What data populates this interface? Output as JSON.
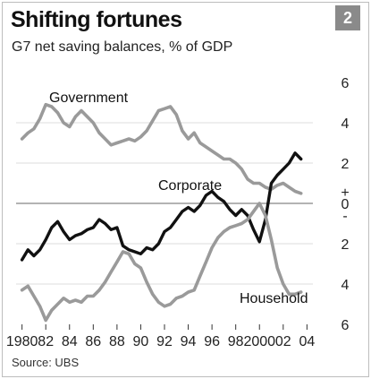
{
  "header": {
    "title": "Shifting fortunes",
    "subtitle": "G7 net saving balances, % of GDP",
    "chart_number": "2"
  },
  "footer": {
    "source": "Source: UBS"
  },
  "chart_data": {
    "type": "line",
    "title": "Shifting fortunes",
    "subtitle": "G7 net saving balances, % of GDP",
    "xlabel": "",
    "ylabel": "",
    "xlim": [
      1979.5,
      2004.5
    ],
    "ylim": [
      -6,
      6
    ],
    "x_ticks": [
      1980,
      1982,
      1984,
      1986,
      1988,
      1990,
      1992,
      1994,
      1996,
      1998,
      2000,
      2002,
      2004
    ],
    "x_tick_labels": [
      "1980",
      "82",
      "84",
      "86",
      "88",
      "90",
      "92",
      "94",
      "96",
      "98",
      "2000",
      "02",
      "04"
    ],
    "y_ticks": [
      6,
      4,
      2,
      0,
      -2,
      -4,
      -6
    ],
    "y_tick_labels": [
      "6",
      "4",
      "2",
      "0",
      "2",
      "4",
      "6"
    ],
    "y_sign_markers": [
      "+",
      "-"
    ],
    "grid": true,
    "zero_line": true,
    "legend": "none",
    "series": [
      {
        "name": "Government",
        "color": "#9a9a9a",
        "points": [
          [
            1980,
            3.2
          ],
          [
            1980.5,
            3.5
          ],
          [
            1981,
            3.7
          ],
          [
            1981.5,
            4.2
          ],
          [
            1982,
            4.9
          ],
          [
            1982.5,
            4.8
          ],
          [
            1983,
            4.5
          ],
          [
            1983.5,
            4.0
          ],
          [
            1984,
            3.8
          ],
          [
            1984.5,
            4.3
          ],
          [
            1985,
            4.6
          ],
          [
            1985.5,
            4.3
          ],
          [
            1986,
            4.0
          ],
          [
            1986.5,
            3.5
          ],
          [
            1987,
            3.2
          ],
          [
            1987.5,
            2.9
          ],
          [
            1988,
            3.0
          ],
          [
            1988.5,
            3.1
          ],
          [
            1989,
            3.2
          ],
          [
            1989.5,
            3.1
          ],
          [
            1990,
            3.3
          ],
          [
            1990.5,
            3.6
          ],
          [
            1991,
            4.1
          ],
          [
            1991.5,
            4.6
          ],
          [
            1992,
            4.7
          ],
          [
            1992.5,
            4.8
          ],
          [
            1993,
            4.4
          ],
          [
            1993.5,
            3.6
          ],
          [
            1994,
            3.2
          ],
          [
            1994.5,
            3.5
          ],
          [
            1995,
            3.0
          ],
          [
            1995.5,
            2.8
          ],
          [
            1996,
            2.6
          ],
          [
            1996.5,
            2.4
          ],
          [
            1997,
            2.2
          ],
          [
            1997.5,
            2.2
          ],
          [
            1998,
            2.0
          ],
          [
            1998.5,
            1.7
          ],
          [
            1999,
            1.2
          ],
          [
            1999.5,
            1.0
          ],
          [
            2000,
            1.0
          ],
          [
            2000.5,
            0.8
          ],
          [
            2001,
            0.7
          ],
          [
            2001.5,
            0.9
          ],
          [
            2002,
            1.0
          ],
          [
            2002.5,
            0.8
          ],
          [
            2003,
            0.6
          ],
          [
            2003.5,
            0.5
          ]
        ]
      },
      {
        "name": "Corporate",
        "color": "#111111",
        "points": [
          [
            1980,
            -2.8
          ],
          [
            1980.5,
            -2.3
          ],
          [
            1981,
            -2.6
          ],
          [
            1981.5,
            -2.3
          ],
          [
            1982,
            -1.8
          ],
          [
            1982.5,
            -1.2
          ],
          [
            1983,
            -0.9
          ],
          [
            1983.5,
            -1.4
          ],
          [
            1984,
            -1.8
          ],
          [
            1984.5,
            -1.6
          ],
          [
            1985,
            -1.5
          ],
          [
            1985.5,
            -1.3
          ],
          [
            1986,
            -1.2
          ],
          [
            1986.5,
            -0.8
          ],
          [
            1987,
            -1.0
          ],
          [
            1987.5,
            -1.3
          ],
          [
            1988,
            -1.2
          ],
          [
            1988.5,
            -2.1
          ],
          [
            1989,
            -2.3
          ],
          [
            1989.5,
            -2.4
          ],
          [
            1990,
            -2.5
          ],
          [
            1990.5,
            -2.2
          ],
          [
            1991,
            -2.3
          ],
          [
            1991.5,
            -2.0
          ],
          [
            1992,
            -1.4
          ],
          [
            1992.5,
            -1.2
          ],
          [
            1993,
            -0.8
          ],
          [
            1993.5,
            -0.4
          ],
          [
            1994,
            -0.2
          ],
          [
            1994.5,
            -0.4
          ],
          [
            1995,
            -0.1
          ],
          [
            1995.5,
            0.4
          ],
          [
            1996,
            0.6
          ],
          [
            1996.5,
            0.3
          ],
          [
            1997,
            0.1
          ],
          [
            1997.5,
            -0.3
          ],
          [
            1998,
            -0.6
          ],
          [
            1998.5,
            -0.3
          ],
          [
            1999,
            -0.6
          ],
          [
            1999.5,
            -1.3
          ],
          [
            2000,
            -1.9
          ],
          [
            2000.5,
            -0.8
          ],
          [
            2001,
            1.0
          ],
          [
            2001.5,
            1.4
          ],
          [
            2002,
            1.7
          ],
          [
            2002.5,
            2.0
          ],
          [
            2003,
            2.5
          ],
          [
            2003.5,
            2.2
          ]
        ]
      },
      {
        "name": "Household",
        "color": "#9a9a9a",
        "points": [
          [
            1980,
            -4.3
          ],
          [
            1980.5,
            -4.1
          ],
          [
            1981,
            -4.6
          ],
          [
            1981.5,
            -5.1
          ],
          [
            1982,
            -5.8
          ],
          [
            1982.5,
            -5.3
          ],
          [
            1983,
            -5.0
          ],
          [
            1983.5,
            -4.7
          ],
          [
            1984,
            -4.9
          ],
          [
            1984.5,
            -4.8
          ],
          [
            1985,
            -4.9
          ],
          [
            1985.5,
            -4.6
          ],
          [
            1986,
            -4.6
          ],
          [
            1986.5,
            -4.3
          ],
          [
            1987,
            -3.9
          ],
          [
            1987.5,
            -3.4
          ],
          [
            1988,
            -2.9
          ],
          [
            1988.5,
            -2.4
          ],
          [
            1989,
            -2.5
          ],
          [
            1989.5,
            -3.0
          ],
          [
            1990,
            -3.2
          ],
          [
            1990.5,
            -3.9
          ],
          [
            1991,
            -4.5
          ],
          [
            1991.5,
            -4.9
          ],
          [
            1992,
            -5.1
          ],
          [
            1992.5,
            -5.0
          ],
          [
            1993,
            -4.7
          ],
          [
            1993.5,
            -4.6
          ],
          [
            1994,
            -4.4
          ],
          [
            1994.5,
            -4.3
          ],
          [
            1995,
            -3.6
          ],
          [
            1995.5,
            -2.9
          ],
          [
            1996,
            -2.2
          ],
          [
            1996.5,
            -1.7
          ],
          [
            1997,
            -1.4
          ],
          [
            1997.5,
            -1.2
          ],
          [
            1998,
            -1.1
          ],
          [
            1998.5,
            -1.0
          ],
          [
            1999,
            -0.8
          ],
          [
            1999.5,
            -0.4
          ],
          [
            2000,
            0.0
          ],
          [
            2000.5,
            -0.6
          ],
          [
            2001,
            -1.8
          ],
          [
            2001.5,
            -3.2
          ],
          [
            2002,
            -4.0
          ],
          [
            2002.5,
            -4.5
          ],
          [
            2003,
            -4.5
          ],
          [
            2003.5,
            -4.4
          ]
        ]
      }
    ]
  }
}
